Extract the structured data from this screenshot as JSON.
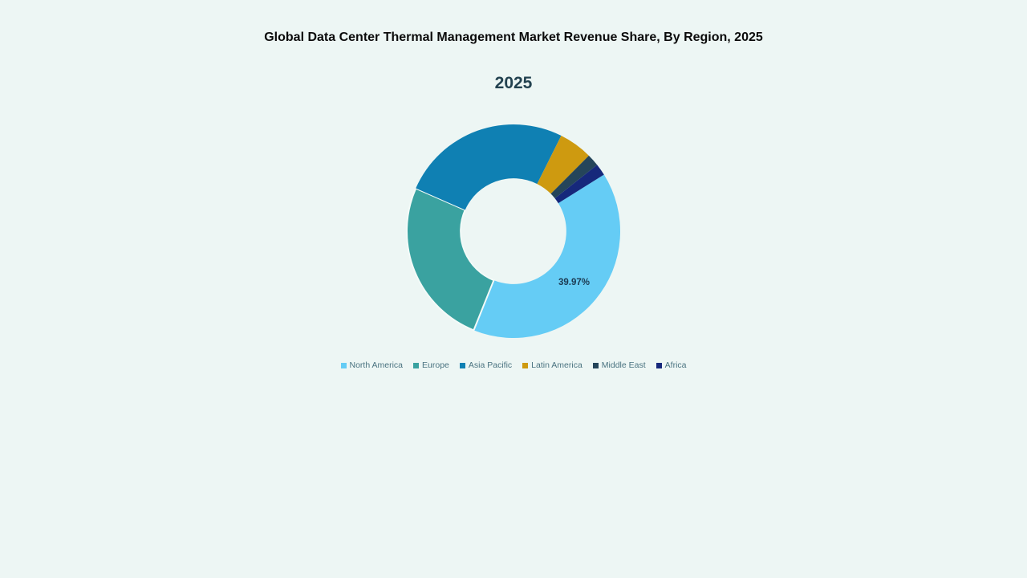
{
  "page": {
    "background": "#EDF6F4"
  },
  "header": {
    "title": "Global Data Center Thermal Management Market Revenue Share, By Region, 2025"
  },
  "chart": {
    "subtitle": "2025"
  },
  "chart_data": {
    "type": "pie",
    "variant": "donut",
    "title": "Global Data Center Thermal Management Market Revenue Share, By Region, 2025",
    "subtitle": "2025",
    "unit": "%",
    "start_angle_deg": 58,
    "clockwise": true,
    "inner_radius_ratio": 0.495,
    "legend_position": "bottom",
    "data_label_color": "#1C3A52",
    "legend_text_color": "#4A7380",
    "slices": [
      {
        "label": "North America",
        "value": 39.97,
        "color": "#65CCF5",
        "data_label": "39.97%",
        "data_label_visible": true
      },
      {
        "label": "Europe",
        "value": 25.5,
        "color": "#3AA2A0",
        "data_label_visible": false,
        "stroke": "#F3FAF8"
      },
      {
        "label": "Asia Pacific",
        "value": 25.8,
        "color": "#0F80B3",
        "data_label_visible": false
      },
      {
        "label": "Latin America",
        "value": 5.1,
        "color": "#CE9A10",
        "data_label_visible": false
      },
      {
        "label": "Middle East",
        "value": 1.85,
        "color": "#25455A",
        "data_label_visible": false
      },
      {
        "label": "Africa",
        "value": 1.78,
        "color": "#16287B",
        "data_label_visible": false
      }
    ]
  }
}
